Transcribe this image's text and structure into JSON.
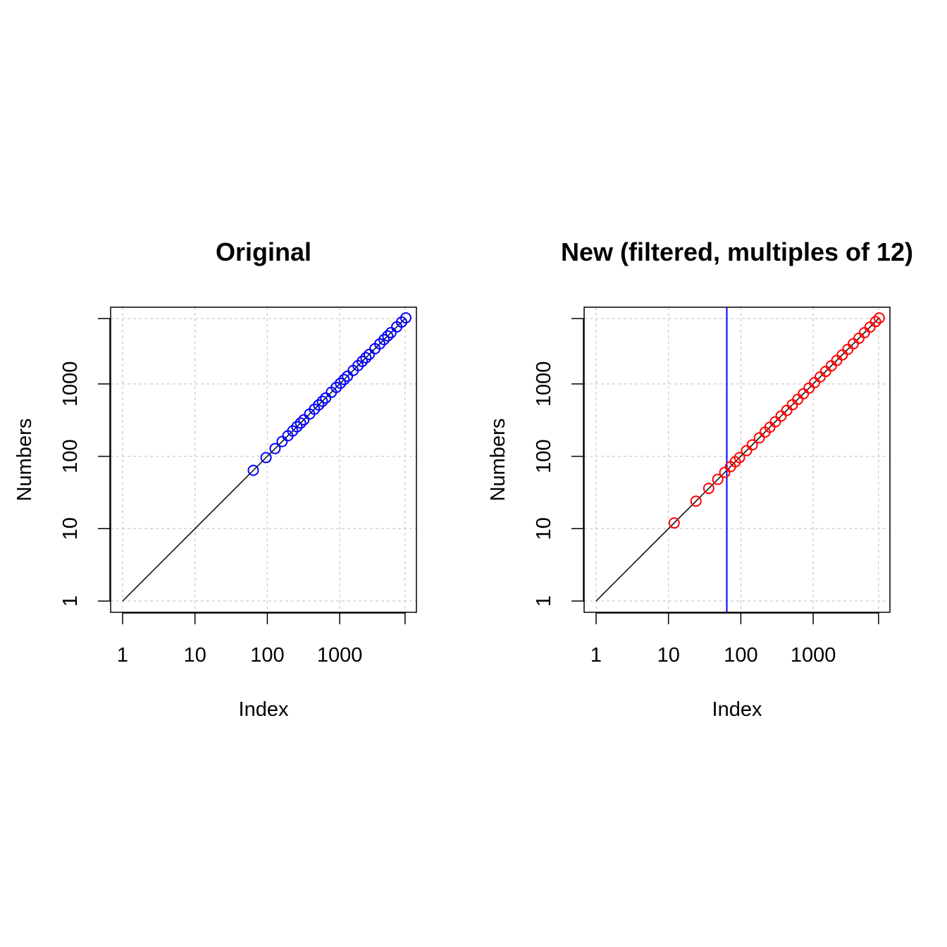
{
  "chart_data": [
    {
      "type": "scatter",
      "title": "Original",
      "xlabel": "Index",
      "ylabel": "Numbers",
      "x_scale": "log",
      "y_scale": "log",
      "xlim": [
        1,
        8000
      ],
      "ylim": [
        1,
        8000
      ],
      "x_ticks": [
        "1",
        "10",
        "100",
        "1000"
      ],
      "y_ticks": [
        "1",
        "10",
        "100",
        "1000"
      ],
      "grid": true,
      "reference_line": {
        "from": 1,
        "to": 3600,
        "color": "#000000"
      },
      "point_color": "#0000ff",
      "series": [
        {
          "x": [
            64,
            96,
            128,
            160,
            192,
            224,
            256,
            288,
            320,
            384,
            448,
            512,
            576,
            640,
            768,
            896,
            1024,
            1152,
            1280,
            1536,
            1792,
            2048,
            2304,
            2560,
            3072,
            3584,
            4096,
            4608,
            5120,
            6144,
            7168,
            8192
          ],
          "y": [
            64,
            96,
            128,
            160,
            192,
            224,
            256,
            288,
            320,
            384,
            448,
            512,
            576,
            640,
            768,
            896,
            1024,
            1152,
            1280,
            1536,
            1792,
            2048,
            2304,
            2560,
            3072,
            3584,
            4096,
            4608,
            5120,
            6144,
            7168,
            8192
          ]
        }
      ]
    },
    {
      "type": "scatter",
      "title": "New (filtered, multiples of 12)",
      "xlabel": "Index",
      "ylabel": "Numbers",
      "x_scale": "log",
      "y_scale": "log",
      "xlim": [
        1,
        8000
      ],
      "ylim": [
        1,
        8000
      ],
      "x_ticks": [
        "1",
        "10",
        "100",
        "1000"
      ],
      "y_ticks": [
        "1",
        "10",
        "100",
        "1000"
      ],
      "grid": true,
      "reference_line": {
        "from": 1,
        "to": 3600,
        "color": "#000000"
      },
      "vertical_line": {
        "x": 64,
        "color": "#0000ff"
      },
      "point_color": "#ff0000",
      "series": [
        {
          "x": [
            12,
            24,
            36,
            48,
            60,
            72,
            84,
            96,
            120,
            144,
            180,
            216,
            252,
            300,
            360,
            432,
            516,
            612,
            732,
            876,
            1044,
            1248,
            1488,
            1776,
            2112,
            2520,
            3012,
            3588,
            4284,
            5112,
            6096,
            7272,
            8172
          ],
          "y": [
            12,
            24,
            36,
            48,
            60,
            72,
            84,
            96,
            120,
            144,
            180,
            216,
            252,
            300,
            360,
            432,
            516,
            612,
            732,
            876,
            1044,
            1248,
            1488,
            1776,
            2112,
            2520,
            3012,
            3588,
            4284,
            5112,
            6096,
            7272,
            8172
          ]
        }
      ]
    }
  ]
}
